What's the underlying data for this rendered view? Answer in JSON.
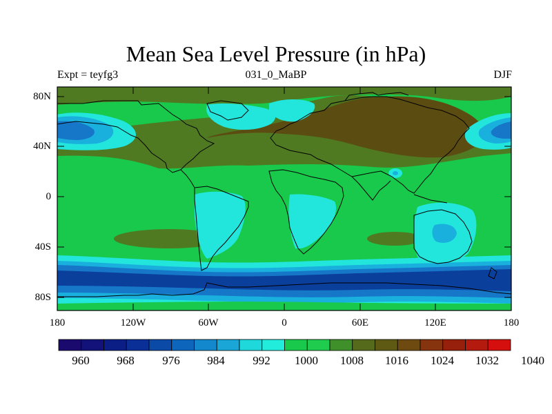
{
  "title": "Mean Sea Level Pressure (in hPa)",
  "subtitle_left": "Expt = teyfg3",
  "subtitle_center": "031_0_MaBP",
  "subtitle_right": "DJF",
  "y_ticks": [
    "80N",
    "40N",
    "0",
    "40S",
    "80S"
  ],
  "x_ticks": [
    "180",
    "120W",
    "60W",
    "0",
    "60E",
    "120E",
    "180"
  ],
  "colorbar_labels": [
    "960",
    "968",
    "976",
    "984",
    "992",
    "1000",
    "1008",
    "1016",
    "1024",
    "1032",
    "1040"
  ],
  "colorbar_colors": [
    "#1a0a6e",
    "#12127a",
    "#0b1e86",
    "#0a2f96",
    "#0c4aa8",
    "#0e66bc",
    "#1388cc",
    "#1aa6d6",
    "#1fd8dc",
    "#22ecdc",
    "#19c94c",
    "#1fcc4e",
    "#3f8f2a",
    "#566a1c",
    "#5e5a14",
    "#6e4a10",
    "#86340e",
    "#96200c",
    "#b41a0e",
    "#d40f0e"
  ],
  "legend_colors": {
    "deep_blue": "#0b3f9c",
    "blue": "#1677c8",
    "light_blue": "#1ab0de",
    "cyan": "#22e6dc",
    "green": "#19c94c",
    "olive": "#4f7a22",
    "brown": "#5b4d12",
    "dark_brown": "#6b3a0e"
  }
}
